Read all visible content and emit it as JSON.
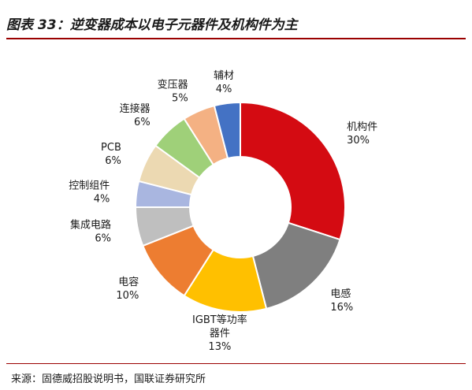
{
  "title": "图表 33：逆变器成本以电子元器件及机构件为主",
  "source": "来源：固德威招股说明书，国联证券研究所",
  "colors": {
    "rule": "#9a0000"
  },
  "chart_data": {
    "type": "pie",
    "variant": "donut",
    "categories": [
      "机构件",
      "电感",
      "IGBT等功率器件",
      "电容",
      "集成电路",
      "控制组件",
      "PCB",
      "连接器",
      "变压器",
      "辅材"
    ],
    "label_lines": [
      [
        "机构件"
      ],
      [
        "电感"
      ],
      [
        "IGBT等功率",
        "器件"
      ],
      [
        "电容"
      ],
      [
        "集成电路"
      ],
      [
        "控制组件"
      ],
      [
        "PCB"
      ],
      [
        "连接器"
      ],
      [
        "变压器"
      ],
      [
        "辅材"
      ]
    ],
    "values": [
      30,
      16,
      13,
      10,
      6,
      4,
      6,
      6,
      5,
      4
    ],
    "value_labels": [
      "30%",
      "16%",
      "13%",
      "10%",
      "6%",
      "4%",
      "6%",
      "6%",
      "5%",
      "4%"
    ],
    "colors": [
      "#d40b12",
      "#7f7f7f",
      "#ffc000",
      "#ed7d31",
      "#bfbfbf",
      "#a9b6e0",
      "#ecd9b2",
      "#9fd079",
      "#f4b183",
      "#4472c4"
    ],
    "start": "12 o'clock",
    "direction": "clockwise"
  }
}
